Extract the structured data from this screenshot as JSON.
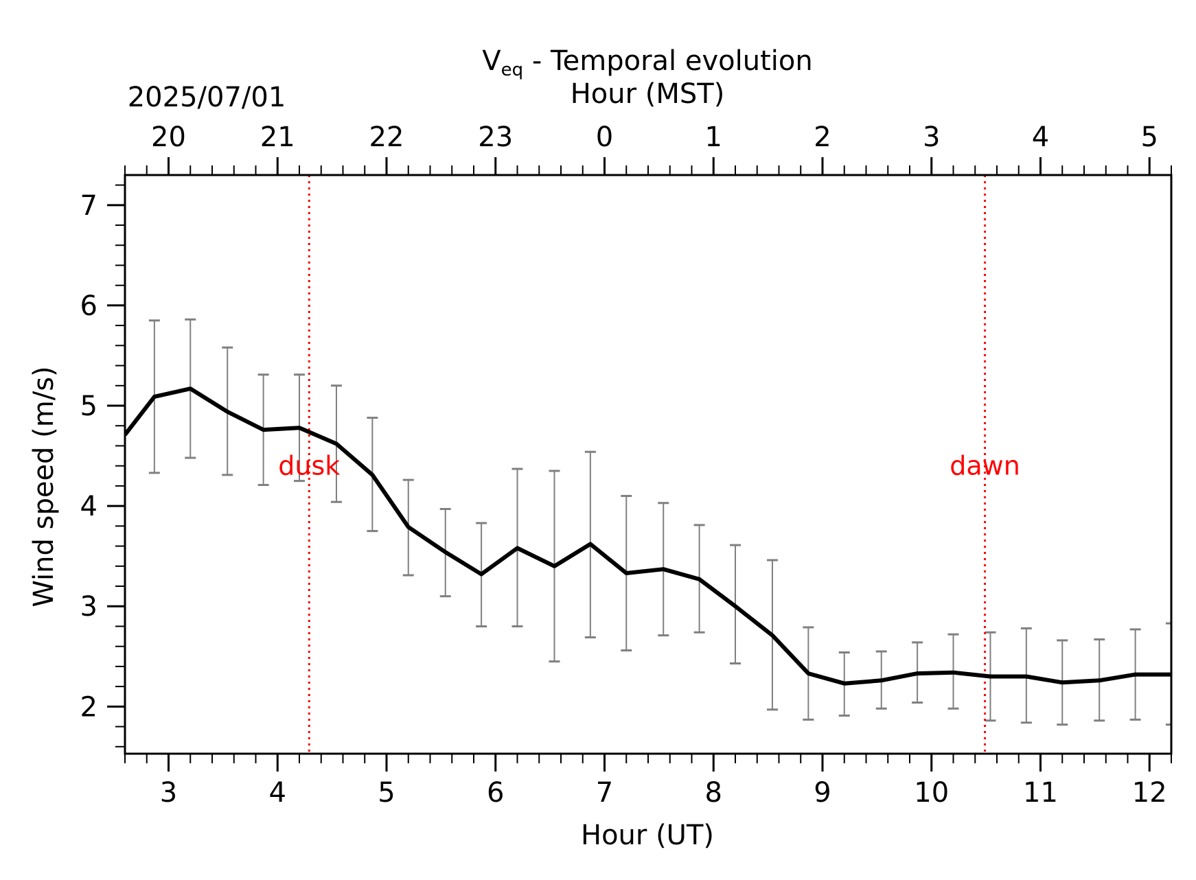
{
  "chart_data": {
    "type": "line",
    "title": "V",
    "title_subscript": "eq",
    "title_suffix": " - Temporal evolution",
    "date_label": "2025/07/01",
    "xlabel": "Hour (UT)",
    "x2label": "Hour (MST)",
    "ylabel": "Wind speed (m/s)",
    "xlim": [
      2.6,
      12.2
    ],
    "ylim": [
      1.53,
      7.3
    ],
    "x_ticks": [
      3,
      4,
      5,
      6,
      7,
      8,
      9,
      10,
      11,
      12
    ],
    "x_tick_labels": [
      "3",
      "4",
      "5",
      "6",
      "7",
      "8",
      "9",
      "10",
      "11",
      "12"
    ],
    "x2_ticks": [
      3,
      4,
      5,
      6,
      7,
      8,
      9,
      10,
      11,
      12
    ],
    "x2_tick_labels": [
      "20",
      "21",
      "22",
      "23",
      "0",
      "1",
      "2",
      "3",
      "4",
      "5"
    ],
    "y_ticks": [
      2,
      3,
      4,
      5,
      6,
      7
    ],
    "y_tick_labels": [
      "2",
      "3",
      "4",
      "5",
      "6",
      "7"
    ],
    "grid": false,
    "line_color": "#000000",
    "errorbar_color": "#808080",
    "series": [
      {
        "x": [
          2.6,
          2.87,
          3.2,
          3.54,
          3.87,
          4.2,
          4.54,
          4.87,
          5.2,
          5.54,
          5.87,
          6.2,
          6.54,
          6.87,
          7.2,
          7.54,
          7.87,
          8.2,
          8.54,
          8.87,
          9.2,
          9.54,
          9.87,
          10.2,
          10.54,
          10.87,
          11.2,
          11.54,
          11.87,
          12.2
        ],
        "y": [
          4.71,
          5.09,
          5.17,
          4.94,
          4.76,
          4.78,
          4.62,
          4.31,
          3.79,
          3.54,
          3.32,
          3.58,
          3.4,
          3.62,
          3.33,
          3.37,
          3.27,
          3.0,
          2.71,
          2.33,
          2.23,
          2.26,
          2.33,
          2.34,
          2.3,
          2.3,
          2.24,
          2.26,
          2.32,
          2.32
        ],
        "yerr_low": [
          null,
          4.33,
          4.48,
          4.31,
          4.21,
          4.25,
          4.04,
          3.75,
          3.31,
          3.1,
          2.8,
          2.8,
          2.45,
          2.69,
          2.56,
          2.71,
          2.74,
          2.43,
          1.97,
          1.87,
          1.91,
          1.98,
          2.04,
          1.98,
          1.86,
          1.84,
          1.82,
          1.86,
          1.87,
          1.82
        ],
        "yerr_high": [
          null,
          5.85,
          5.86,
          5.58,
          5.31,
          5.31,
          5.2,
          4.88,
          4.26,
          3.97,
          3.83,
          4.37,
          4.35,
          4.54,
          4.1,
          4.03,
          3.81,
          3.61,
          3.46,
          2.79,
          2.54,
          2.55,
          2.64,
          2.72,
          2.74,
          2.78,
          2.66,
          2.67,
          2.77,
          2.83
        ]
      }
    ],
    "vlines": [
      {
        "x": 4.29,
        "label": "dusk",
        "label_y": 4.4,
        "color": "#ff0000"
      },
      {
        "x": 10.49,
        "label": "dawn",
        "label_y": 4.4,
        "color": "#ff0000"
      }
    ]
  }
}
